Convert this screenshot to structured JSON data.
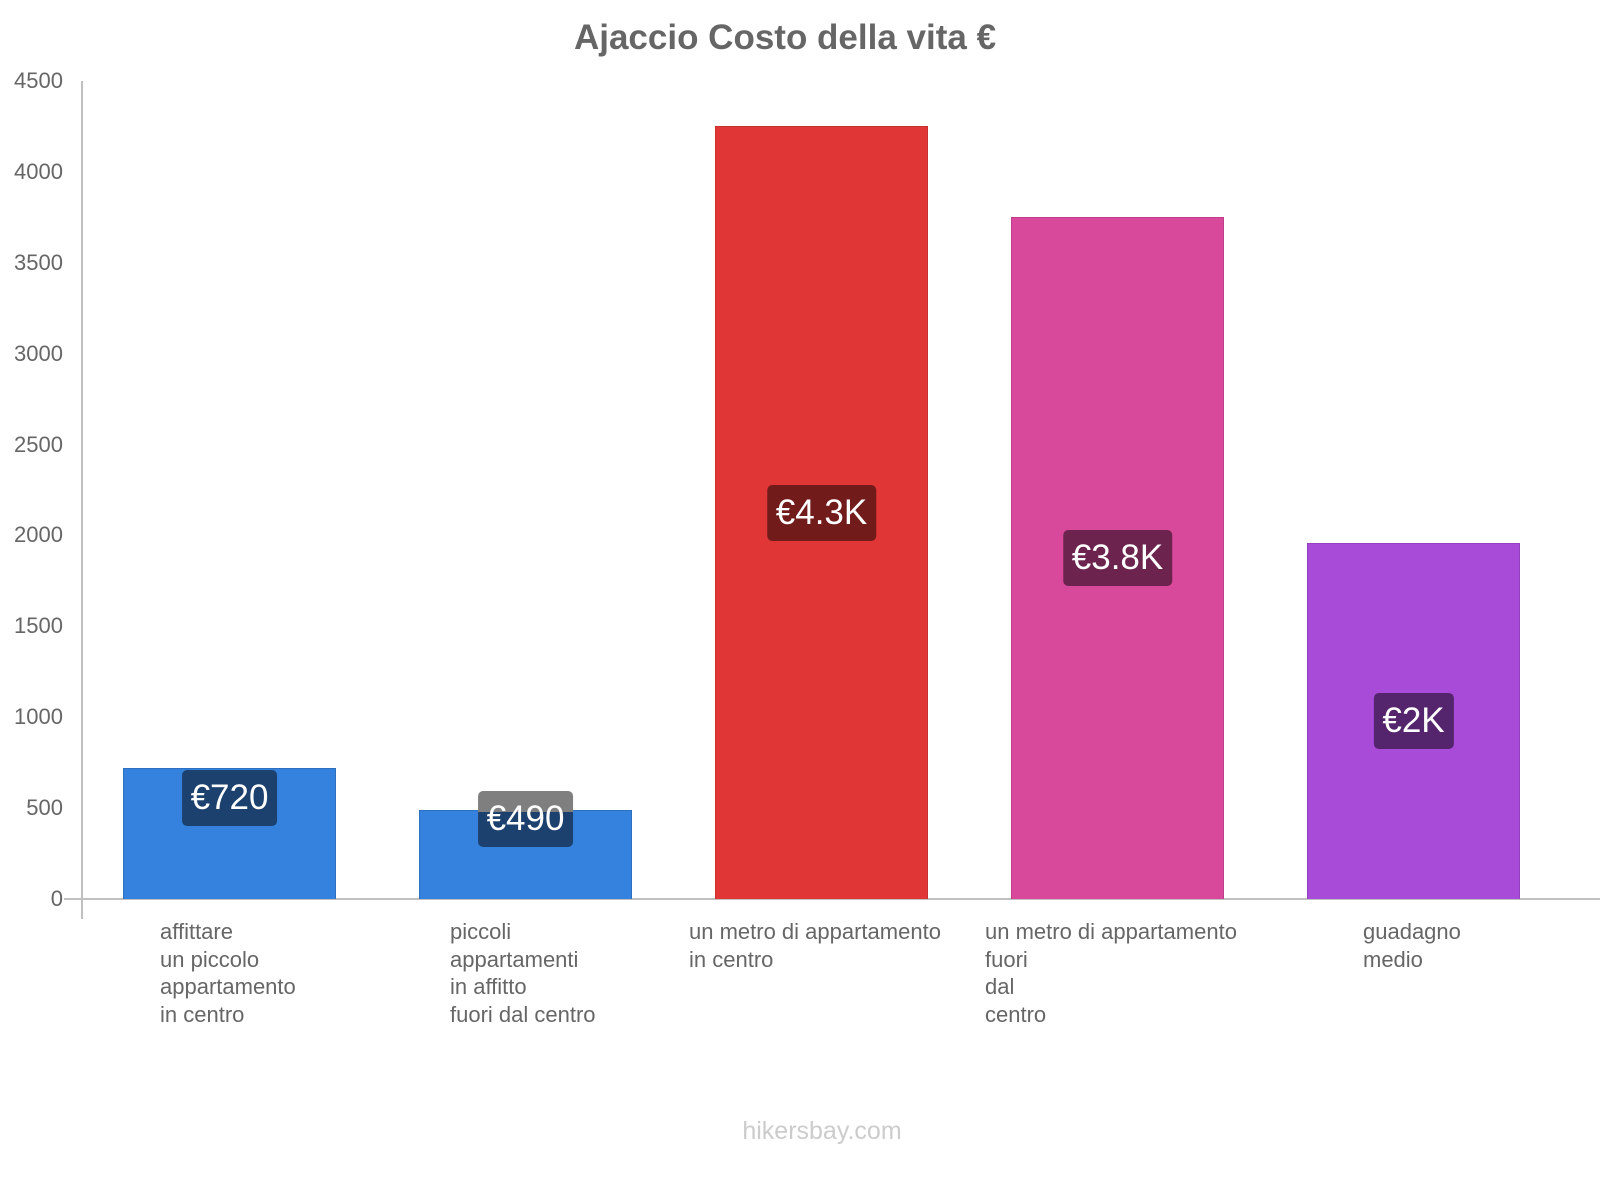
{
  "title": "Ajaccio Costo della vita €",
  "footer": "hikersbay.com",
  "chart_data": {
    "type": "bar",
    "title": "Ajaccio Costo della vita €",
    "xlabel": "",
    "ylabel": "",
    "ylim": [
      0,
      4500
    ],
    "grid": false,
    "legend": "none",
    "y_ticks": [
      0,
      500,
      1000,
      1500,
      2000,
      2500,
      3000,
      3500,
      4000,
      4500
    ],
    "categories": [
      "affittare un piccolo appartamento in centro",
      "piccoli appartamenti in affitto fuori dal centro",
      "un metro di appartamento in centro",
      "un metro di appartamento fuori dal centro",
      "guadagno medio"
    ],
    "values": [
      720,
      490,
      4250,
      3750,
      1960
    ],
    "data_labels": [
      "€720",
      "€490",
      "€4.3K",
      "€3.8K",
      "€2K"
    ],
    "colors": [
      "#3482dd",
      "#3482dd",
      "#e03636",
      "#d8489b",
      "#a84bd8"
    ]
  },
  "bars": [
    {
      "value": 720,
      "label": "€720",
      "color": "#3482dd",
      "border": "#2e70c0",
      "label_bg": "#1c416e",
      "label_bg_top": "#1c416e",
      "category_lines": [
        "affittare",
        "un piccolo",
        "appartamento",
        "in centro"
      ]
    },
    {
      "value": 490,
      "label": "€490",
      "color": "#3482dd",
      "border": "#2e70c0",
      "label_bg": "#1c416e",
      "label_bg_top": "#7f7f7f",
      "category_lines": [
        "piccoli",
        "appartamenti",
        "in affitto",
        "fuori dal centro"
      ]
    },
    {
      "value": 4250,
      "label": "€4.3K",
      "color": "#e03636",
      "border": "#c83030",
      "label_bg": "#721b1b",
      "label_bg_top": "#721b1b",
      "category_lines": [
        "un metro di appartamento",
        "in centro"
      ]
    },
    {
      "value": 3750,
      "label": "€3.8K",
      "color": "#d8489b",
      "border": "#c03e89",
      "label_bg": "#6c244e",
      "label_bg_top": "#6c244e",
      "category_lines": [
        "un metro di appartamento",
        "fuori",
        "dal",
        "centro"
      ]
    },
    {
      "value": 1960,
      "label": "€2K",
      "color": "#a84bd8",
      "border": "#9540c0",
      "label_bg": "#54256c",
      "label_bg_top": "#54256c",
      "category_lines": [
        "guadagno",
        "medio"
      ]
    }
  ]
}
